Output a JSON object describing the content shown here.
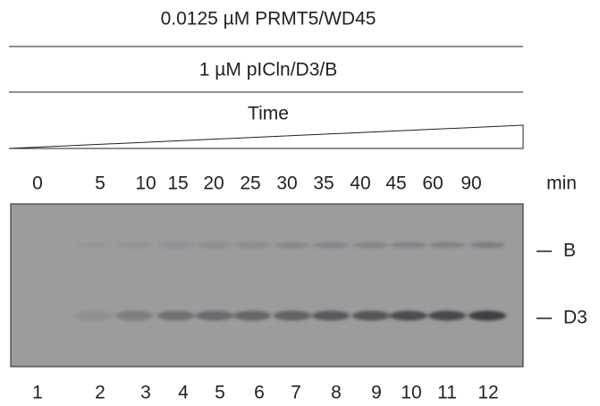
{
  "header": {
    "enzyme": "0.0125 µM PRMT5/WD45",
    "substrate": "1 µM pICln/D3/B",
    "gradient": "Time"
  },
  "time_points": {
    "values": [
      0,
      5,
      10,
      15,
      20,
      25,
      30,
      35,
      40,
      45,
      60,
      90
    ],
    "unit": "min"
  },
  "bands": [
    "B",
    "D3"
  ],
  "lanes": [
    1,
    2,
    3,
    4,
    5,
    6,
    7,
    8,
    9,
    10,
    11,
    12
  ]
}
